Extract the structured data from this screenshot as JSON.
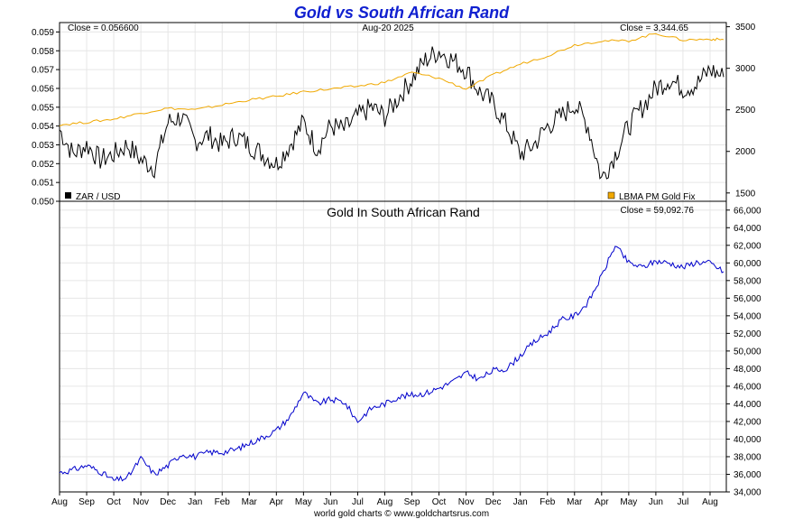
{
  "title": "Gold vs South African Rand",
  "footer": "world gold charts © www.goldchartsrus.com",
  "chart_data": [
    {
      "type": "line",
      "date_label": "Aug-20  2025",
      "left_close": "Close = 0.056600",
      "right_close": "Close = 3,344.65",
      "left_axis": {
        "ylim": [
          0.05,
          0.0595
        ],
        "ticks": [
          "0.050",
          "0.051",
          "0.052",
          "0.053",
          "0.054",
          "0.055",
          "0.056",
          "0.057",
          "0.058",
          "0.059"
        ]
      },
      "right_axis": {
        "ylim": [
          1400,
          3550
        ],
        "ticks": [
          "1500",
          "2000",
          "2500",
          "3000",
          "3500"
        ]
      },
      "legend": [
        {
          "name": "ZAR / USD",
          "color": "#000000",
          "placement": "bottom-left"
        },
        {
          "name": "LBMA PM Gold Fix",
          "color": "#f0a800",
          "placement": "bottom-right"
        }
      ],
      "series": [
        {
          "name": "ZAR / USD",
          "axis": "left",
          "color": "#000000",
          "x": [
            0,
            0.5,
            1,
            1.5,
            2,
            2.5,
            3,
            3.5,
            4,
            4.5,
            5,
            5.5,
            6,
            6.5,
            7,
            7.5,
            8,
            8.5,
            9,
            9.5,
            10,
            10.5,
            11,
            11.5,
            12,
            12.5,
            13,
            13.5,
            14,
            14.5,
            15,
            15.5,
            16,
            16.5,
            17,
            17.5,
            18,
            18.5,
            19,
            19.5,
            20,
            20.5,
            21,
            21.5,
            22,
            22.5,
            23,
            23.5,
            24,
            24.5
          ],
          "values": [
            0.0538,
            0.0525,
            0.053,
            0.0522,
            0.0525,
            0.053,
            0.0522,
            0.0518,
            0.0542,
            0.0545,
            0.0532,
            0.0535,
            0.053,
            0.0535,
            0.053,
            0.0525,
            0.052,
            0.053,
            0.0542,
            0.0528,
            0.054,
            0.0538,
            0.0545,
            0.055,
            0.0545,
            0.0555,
            0.0565,
            0.0575,
            0.058,
            0.0575,
            0.057,
            0.0558,
            0.0552,
            0.054,
            0.0525,
            0.053,
            0.054,
            0.0545,
            0.0552,
            0.054,
            0.0512,
            0.0525,
            0.054,
            0.055,
            0.056,
            0.0565,
            0.056,
            0.0562,
            0.057,
            0.0566
          ]
        },
        {
          "name": "LBMA PM Gold Fix",
          "axis": "right",
          "color": "#f0a800",
          "x": [
            0,
            1,
            2,
            3,
            4,
            5,
            6,
            7,
            8,
            9,
            10,
            11,
            12,
            13,
            14,
            15,
            16,
            17,
            18,
            19,
            20,
            21,
            22,
            23,
            24,
            24.5
          ],
          "values": [
            2320,
            2350,
            2390,
            2460,
            2520,
            2500,
            2560,
            2620,
            2660,
            2720,
            2750,
            2785,
            2830,
            2950,
            2880,
            2750,
            2920,
            3050,
            3150,
            3280,
            3330,
            3330,
            3420,
            3340,
            3350,
            3345
          ]
        }
      ]
    },
    {
      "type": "line",
      "title": "Gold In South African Rand",
      "close": "Close = 59,092.76",
      "ylim": [
        34000,
        67000
      ],
      "y_ticks": [
        "34,000",
        "36,000",
        "38,000",
        "40,000",
        "42,000",
        "44,000",
        "46,000",
        "48,000",
        "50,000",
        "52,000",
        "54,000",
        "56,000",
        "58,000",
        "60,000",
        "62,000",
        "64,000",
        "66,000"
      ],
      "x_ticks": [
        "Aug",
        "Sep",
        "Oct",
        "Nov",
        "Dec",
        "Jan",
        "Feb",
        "Mar",
        "Apr",
        "May",
        "Jun",
        "Jul",
        "Aug",
        "Sep",
        "Oct",
        "Nov",
        "Dec",
        "Jan",
        "Feb",
        "Mar",
        "Apr",
        "May",
        "Jun",
        "Jul",
        "Aug"
      ],
      "series": [
        {
          "name": "Gold In South African Rand",
          "color": "#0000cc",
          "x": [
            0,
            0.5,
            1,
            1.5,
            2,
            2.5,
            3,
            3.5,
            4,
            4.5,
            5,
            5.5,
            6,
            6.5,
            7,
            7.5,
            8,
            8.5,
            9,
            9.5,
            10,
            10.5,
            11,
            11.5,
            12,
            12.5,
            13,
            13.5,
            14,
            14.5,
            15,
            15.5,
            16,
            16.5,
            17,
            17.5,
            18,
            18.5,
            19,
            19.5,
            20,
            20.5,
            21,
            21.5,
            22,
            22.5,
            23,
            23.5,
            24,
            24.5
          ],
          "values": [
            36200,
            36500,
            37000,
            36300,
            35300,
            35600,
            37800,
            36000,
            37000,
            38300,
            38000,
            38500,
            38500,
            38800,
            39500,
            40200,
            41000,
            42500,
            45300,
            44000,
            44500,
            44200,
            42000,
            43500,
            44000,
            44800,
            45000,
            45200,
            45800,
            46500,
            47500,
            46800,
            47800,
            48000,
            49500,
            51000,
            52000,
            53500,
            54000,
            55500,
            58500,
            62000,
            60000,
            59500,
            60200,
            60000,
            59500,
            60100,
            60000,
            59000
          ]
        }
      ]
    }
  ]
}
